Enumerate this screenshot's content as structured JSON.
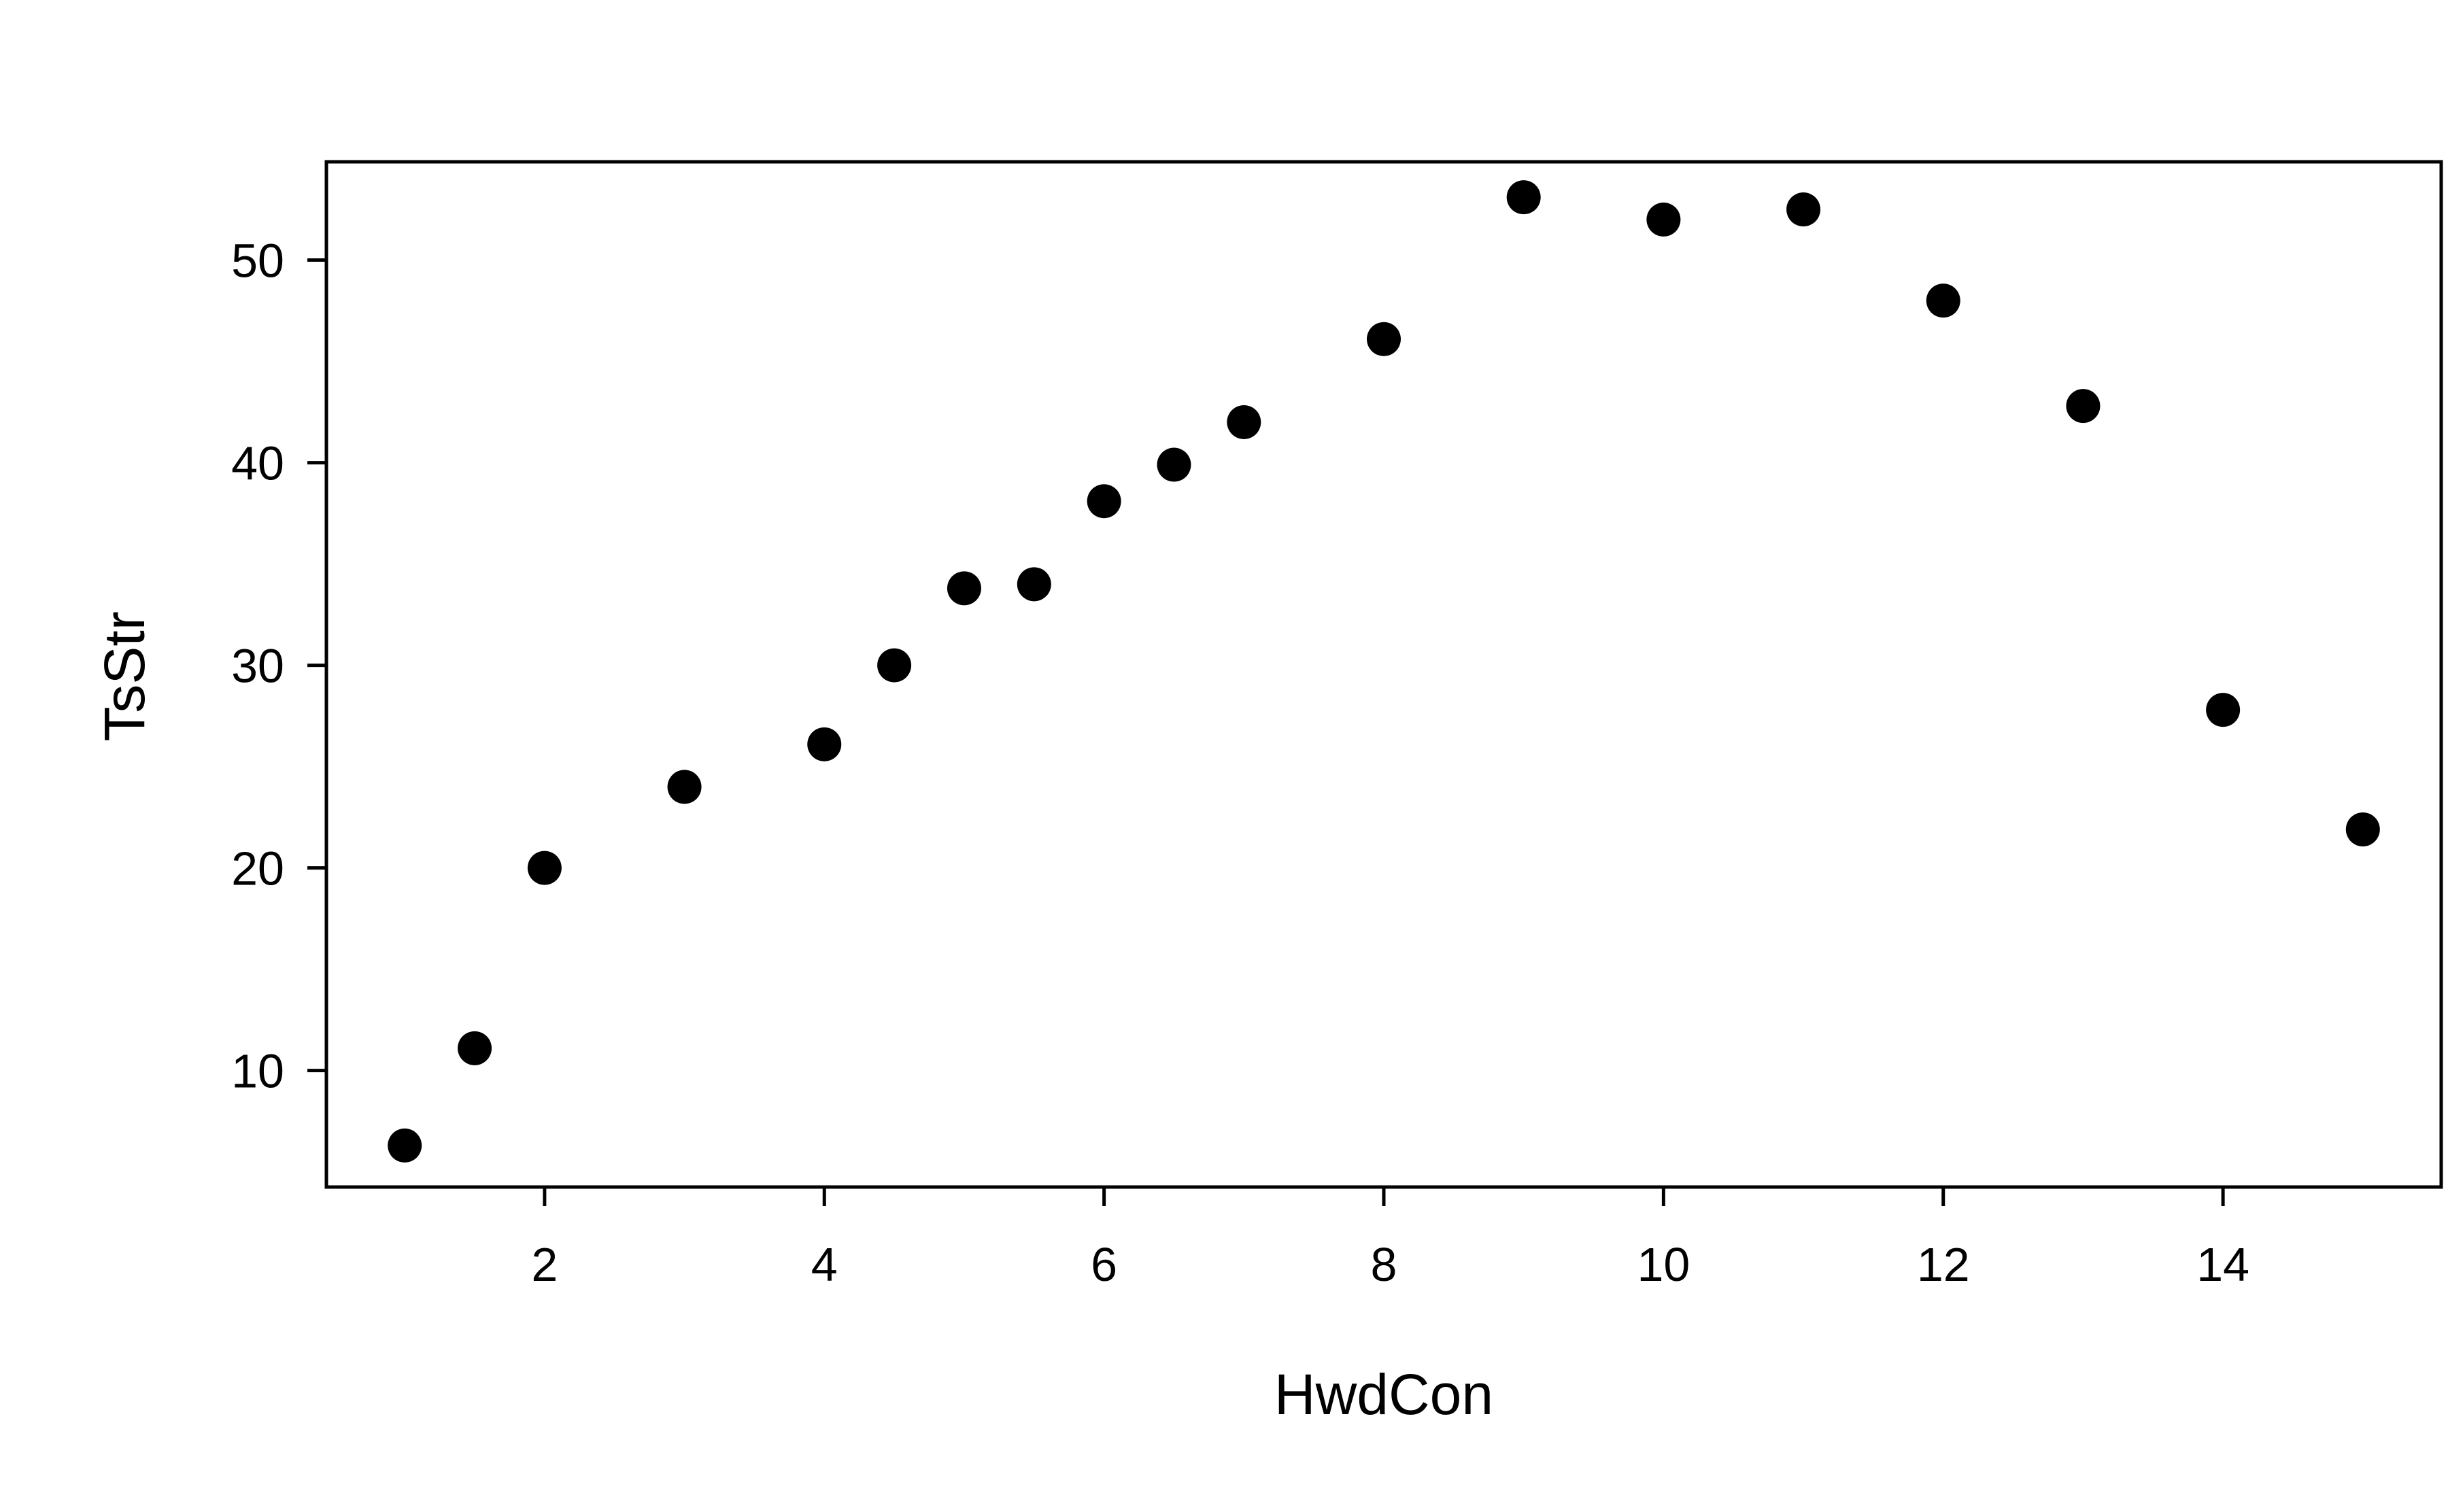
{
  "chart_data": {
    "type": "scatter",
    "title": "",
    "xlabel": "HwdCon",
    "ylabel": "TsStr",
    "xlim": [
      0.44,
      15.56
    ],
    "ylim": [
      4.25,
      54.85
    ],
    "xticks": [
      2,
      4,
      6,
      8,
      10,
      12,
      14
    ],
    "yticks": [
      10,
      20,
      30,
      40,
      50
    ],
    "grid": false,
    "legend": "none",
    "series": [
      {
        "color": "#000000",
        "marker": "filled-circle",
        "points": [
          {
            "x": 1,
            "y": 6.3
          },
          {
            "x": 1.5,
            "y": 11.1
          },
          {
            "x": 2,
            "y": 20.0
          },
          {
            "x": 3,
            "y": 24.0
          },
          {
            "x": 4,
            "y": 26.1
          },
          {
            "x": 4.5,
            "y": 30.0
          },
          {
            "x": 5,
            "y": 33.8
          },
          {
            "x": 5.5,
            "y": 34.0
          },
          {
            "x": 6,
            "y": 38.1
          },
          {
            "x": 6.5,
            "y": 39.9
          },
          {
            "x": 7,
            "y": 42.0
          },
          {
            "x": 8,
            "y": 46.1
          },
          {
            "x": 9,
            "y": 53.1
          },
          {
            "x": 10,
            "y": 52.0
          },
          {
            "x": 11,
            "y": 52.5
          },
          {
            "x": 12,
            "y": 48.0
          },
          {
            "x": 13,
            "y": 42.8
          },
          {
            "x": 14,
            "y": 27.8
          },
          {
            "x": 15,
            "y": 21.9
          }
        ]
      }
    ]
  }
}
